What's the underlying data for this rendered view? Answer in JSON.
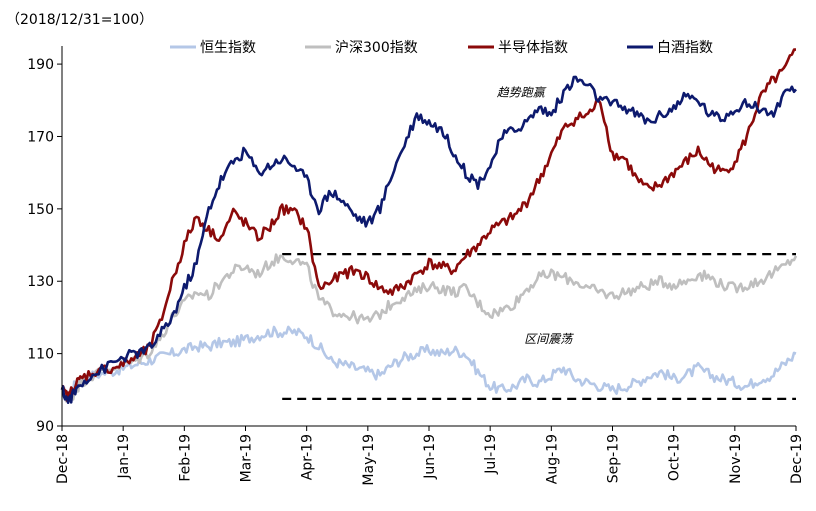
{
  "chart_data": {
    "type": "line",
    "base_note": "（2018/12/31=100）",
    "x_tick_labels": [
      "Dec-18",
      "Jan-19",
      "Feb-19",
      "Mar-19",
      "Apr-19",
      "May-19",
      "Jun-19",
      "Jul-19",
      "Aug-19",
      "Sep-19",
      "Oct-19",
      "Nov-19",
      "Dec-19"
    ],
    "x_range": [
      0,
      12
    ],
    "ylim": [
      90,
      195
    ],
    "y_ticks": [
      90,
      110,
      130,
      150,
      170,
      190
    ],
    "legend_position": "top",
    "series": [
      {
        "name": "恒生指数",
        "color": "#B4C7E7",
        "x": [
          0,
          0.1,
          0.2,
          0.3,
          0.5,
          0.8,
          1.0,
          1.2,
          1.4,
          1.6,
          1.8,
          2.0,
          2.2,
          2.4,
          2.6,
          2.8,
          3.0,
          3.2,
          3.4,
          3.6,
          3.8,
          4.0,
          4.2,
          4.4,
          4.6,
          4.8,
          5.0,
          5.2,
          5.4,
          5.6,
          5.8,
          6.0,
          6.2,
          6.4,
          6.6,
          6.8,
          7.0,
          7.2,
          7.4,
          7.6,
          7.8,
          8.0,
          8.2,
          8.4,
          8.6,
          8.8,
          9.0,
          9.2,
          9.4,
          9.6,
          9.8,
          10.0,
          10.2,
          10.4,
          10.6,
          10.8,
          11.0,
          11.2,
          11.4,
          11.6,
          11.8,
          12.0
        ],
        "values": [
          100,
          98,
          101,
          103,
          104,
          105,
          106,
          107,
          108,
          109,
          110,
          111,
          112,
          112,
          113,
          113,
          114,
          115,
          116,
          116,
          116,
          115,
          112,
          108,
          107,
          106,
          105,
          104,
          107,
          109,
          110,
          111,
          110,
          111,
          110,
          105,
          101,
          100,
          101,
          103,
          102,
          104,
          106,
          103,
          102,
          101,
          100,
          101,
          102,
          104,
          105,
          103,
          104,
          106,
          104,
          103,
          102,
          101,
          103,
          104,
          107,
          110
        ]
      },
      {
        "name": "沪深300指数",
        "color": "#BFBFBF",
        "x": [
          0,
          0.1,
          0.2,
          0.3,
          0.5,
          0.8,
          1.0,
          1.2,
          1.4,
          1.6,
          1.8,
          2.0,
          2.2,
          2.4,
          2.6,
          2.8,
          3.0,
          3.2,
          3.4,
          3.6,
          3.8,
          4.0,
          4.2,
          4.4,
          4.6,
          4.8,
          5.0,
          5.2,
          5.4,
          5.6,
          5.8,
          6.0,
          6.2,
          6.4,
          6.6,
          6.8,
          7.0,
          7.2,
          7.4,
          7.6,
          7.8,
          8.0,
          8.2,
          8.4,
          8.6,
          8.8,
          9.0,
          9.2,
          9.4,
          9.6,
          9.8,
          10.0,
          10.2,
          10.4,
          10.6,
          10.8,
          11.0,
          11.2,
          11.4,
          11.6,
          11.8,
          12.0
        ],
        "values": [
          100,
          97,
          99,
          102,
          104,
          106,
          107,
          108,
          110,
          114,
          120,
          124,
          127,
          126,
          130,
          133,
          134,
          132,
          135,
          137,
          136,
          134,
          125,
          122,
          121,
          120,
          119,
          121,
          124,
          126,
          127,
          129,
          128,
          127,
          128,
          124,
          121,
          122,
          124,
          128,
          131,
          132,
          131,
          130,
          128,
          127,
          126,
          127,
          128,
          129,
          130,
          129,
          130,
          132,
          131,
          129,
          128,
          129,
          130,
          132,
          134,
          137
        ]
      },
      {
        "name": "半导体指数",
        "color": "#8B0A0A",
        "x": [
          0,
          0.1,
          0.2,
          0.3,
          0.5,
          0.8,
          1.0,
          1.2,
          1.4,
          1.6,
          1.8,
          2.0,
          2.2,
          2.4,
          2.6,
          2.8,
          3.0,
          3.2,
          3.4,
          3.6,
          3.8,
          4.0,
          4.2,
          4.4,
          4.6,
          4.8,
          5.0,
          5.2,
          5.4,
          5.6,
          5.8,
          6.0,
          6.2,
          6.4,
          6.6,
          6.8,
          7.0,
          7.2,
          7.4,
          7.6,
          7.8,
          8.0,
          8.2,
          8.4,
          8.6,
          8.8,
          9.0,
          9.2,
          9.4,
          9.6,
          9.8,
          10.0,
          10.2,
          10.4,
          10.6,
          10.8,
          11.0,
          11.2,
          11.4,
          11.6,
          11.8,
          12.0
        ],
        "values": [
          100,
          98,
          101,
          103,
          105,
          106,
          107,
          109,
          111,
          118,
          130,
          140,
          148,
          144,
          142,
          149,
          146,
          142,
          145,
          150,
          149,
          145,
          128,
          130,
          132,
          133,
          131,
          128,
          127,
          129,
          132,
          135,
          134,
          133,
          137,
          140,
          144,
          146,
          148,
          152,
          158,
          165,
          172,
          175,
          176,
          180,
          165,
          164,
          158,
          155,
          157,
          160,
          163,
          166,
          162,
          160,
          163,
          170,
          180,
          185,
          188,
          194
        ]
      },
      {
        "name": "白酒指数",
        "color": "#0D1A6E",
        "x": [
          0,
          0.1,
          0.2,
          0.3,
          0.5,
          0.8,
          1.0,
          1.2,
          1.4,
          1.6,
          1.8,
          2.0,
          2.2,
          2.4,
          2.6,
          2.8,
          3.0,
          3.2,
          3.4,
          3.6,
          3.8,
          4.0,
          4.2,
          4.4,
          4.6,
          4.8,
          5.0,
          5.2,
          5.4,
          5.6,
          5.8,
          6.0,
          6.2,
          6.4,
          6.6,
          6.8,
          7.0,
          7.2,
          7.4,
          7.6,
          7.8,
          8.0,
          8.2,
          8.4,
          8.6,
          8.8,
          9.0,
          9.2,
          9.4,
          9.6,
          9.8,
          10.0,
          10.2,
          10.4,
          10.6,
          10.8,
          11.0,
          11.2,
          11.4,
          11.6,
          11.8,
          12.0
        ],
        "values": [
          100,
          97,
          99,
          102,
          104,
          107,
          109,
          110,
          111,
          115,
          120,
          128,
          135,
          150,
          158,
          163,
          166,
          160,
          162,
          164,
          162,
          158,
          150,
          155,
          152,
          148,
          146,
          150,
          160,
          168,
          176,
          174,
          172,
          166,
          160,
          157,
          162,
          170,
          172,
          174,
          178,
          176,
          182,
          186,
          184,
          180,
          179,
          178,
          176,
          174,
          176,
          178,
          181,
          180,
          176,
          175,
          178,
          179,
          178,
          176,
          181,
          183
        ]
      }
    ],
    "annotations": [
      {
        "text": "趋势跑赢",
        "x": 7.5,
        "y": 181
      },
      {
        "text": "区间震荡",
        "x": 7.95,
        "y": 113
      }
    ],
    "reference_lines": [
      {
        "label": "upper-dashed-line",
        "y": 137.5,
        "x": [
          3.6,
          12
        ]
      },
      {
        "label": "lower-dashed-line",
        "y": 97.5,
        "x": [
          3.6,
          12
        ]
      }
    ]
  }
}
